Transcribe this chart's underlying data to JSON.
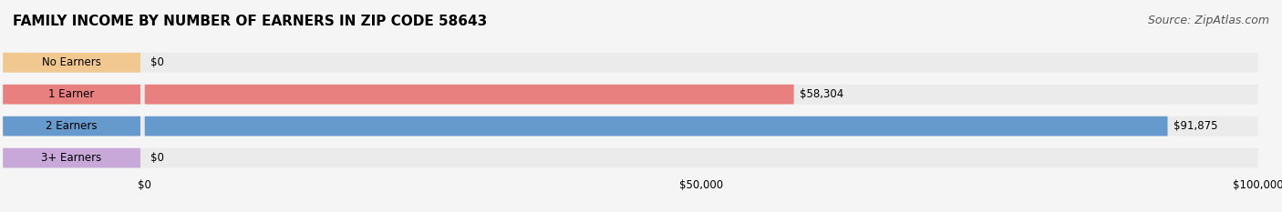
{
  "title": "FAMILY INCOME BY NUMBER OF EARNERS IN ZIP CODE 58643",
  "source": "Source: ZipAtlas.com",
  "categories": [
    "No Earners",
    "1 Earner",
    "2 Earners",
    "3+ Earners"
  ],
  "values": [
    0,
    58304,
    91875,
    0
  ],
  "bar_colors": [
    "#f0c890",
    "#e88080",
    "#6699cc",
    "#c8a8d8"
  ],
  "label_colors": [
    "#c8a070",
    "#cc6666",
    "#5577bb",
    "#aa88cc"
  ],
  "value_labels": [
    "$0",
    "$58,304",
    "$91,875",
    "$0"
  ],
  "x_max": 100000,
  "x_ticks": [
    0,
    50000,
    100000
  ],
  "x_tick_labels": [
    "$0",
    "$50,000",
    "$100,000"
  ],
  "background_color": "#f5f5f5",
  "bar_background": "#ebebeb",
  "title_fontsize": 11,
  "source_fontsize": 9
}
